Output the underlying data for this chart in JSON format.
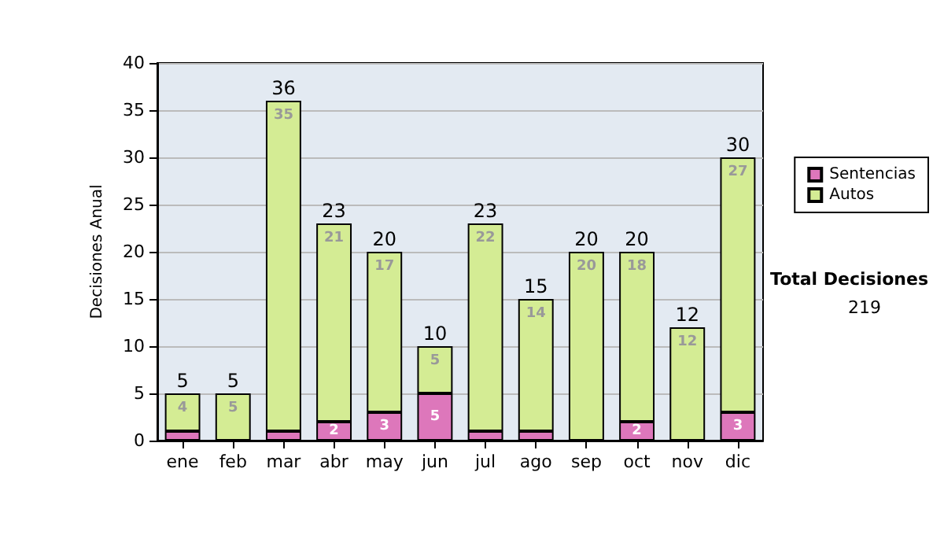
{
  "chart_data": {
    "type": "bar",
    "ylabel": "Decisiones Anual",
    "categories": [
      "ene",
      "feb",
      "mar",
      "abr",
      "may",
      "jun",
      "jul",
      "ago",
      "sep",
      "oct",
      "nov",
      "dic"
    ],
    "series": [
      {
        "name": "Sentencias",
        "color": "#dd77bb",
        "values": [
          1,
          0,
          1,
          2,
          3,
          5,
          1,
          1,
          0,
          2,
          0,
          3
        ],
        "value_labels": [
          null,
          null,
          null,
          "2",
          "3",
          "5",
          null,
          null,
          null,
          "2",
          null,
          "3"
        ]
      },
      {
        "name": "Autos",
        "color": "#d4ec94",
        "values": [
          4,
          5,
          35,
          21,
          17,
          5,
          22,
          14,
          20,
          18,
          12,
          27
        ],
        "value_labels": [
          "4",
          "5",
          "35",
          "21",
          "17",
          "5",
          "22",
          "14",
          "20",
          "18",
          "12",
          "27"
        ]
      }
    ],
    "stacked": true,
    "totals": [
      "5",
      "5",
      "36",
      "23",
      "20",
      "10",
      "23",
      "15",
      "20",
      "20",
      "12",
      "30"
    ],
    "ylim": [
      0,
      40
    ],
    "yticks": [
      0,
      5,
      10,
      15,
      20,
      25,
      30,
      35,
      40
    ],
    "grid": "y",
    "legend": "right",
    "annotations": [
      "Total Decisiones",
      "219"
    ]
  }
}
